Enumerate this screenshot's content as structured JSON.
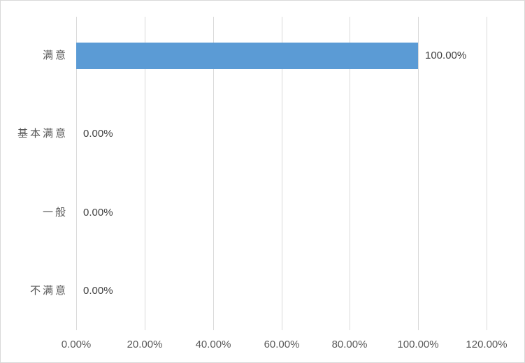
{
  "chart_data": {
    "type": "bar",
    "orientation": "horizontal",
    "title": "",
    "xlabel": "",
    "ylabel": "",
    "categories": [
      "满意",
      "基本满意",
      "一般",
      "不满意"
    ],
    "values": [
      100,
      0,
      0,
      0
    ],
    "data_labels": [
      "100.00%",
      "0.00%",
      "0.00%",
      "0.00%"
    ],
    "x_tick_values": [
      0,
      20,
      40,
      60,
      80,
      100,
      120
    ],
    "x_tick_labels": [
      "0.00%",
      "20.00%",
      "40.00%",
      "60.00%",
      "80.00%",
      "100.00%",
      "120.00%"
    ],
    "xlim": [
      0,
      120
    ],
    "grid": true,
    "legend": false,
    "colors": {
      "bar_fill": "#5b9bd5",
      "gridline": "#d9d9d9",
      "frame_border": "#d9d9d9",
      "axis_text": "#595959",
      "data_label_text": "#404040",
      "background": "#ffffff"
    }
  }
}
